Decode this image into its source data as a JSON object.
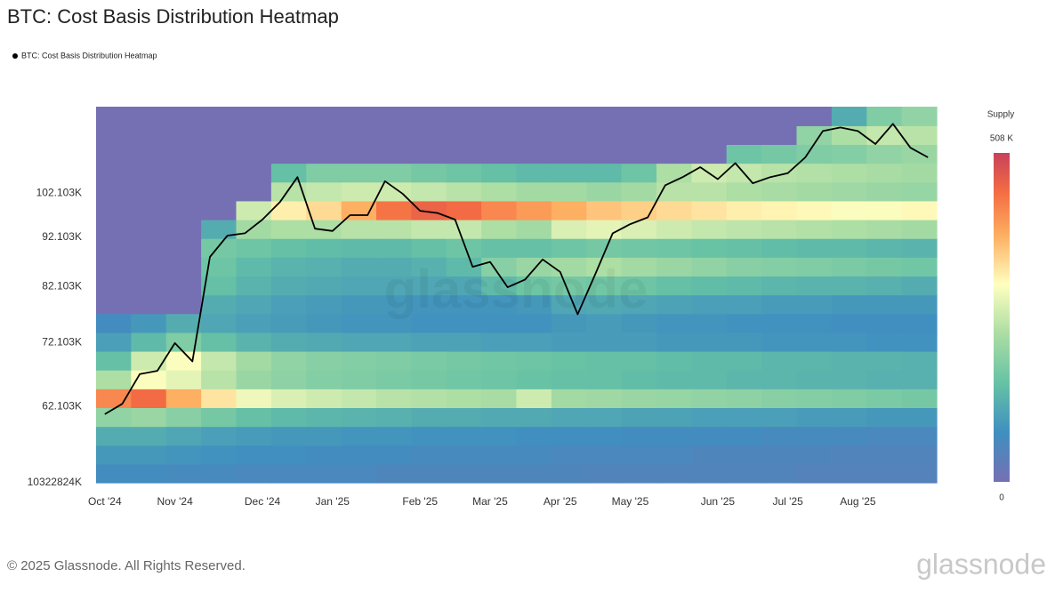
{
  "chart_data": {
    "type": "heatmap",
    "title": "BTC: Cost Basis Distribution Heatmap",
    "categories": [
      "Oct '24",
      null,
      null,
      null,
      "Nov '24",
      null,
      null,
      null,
      null,
      "Dec '24",
      null,
      null,
      null,
      "Jan '25",
      null,
      null,
      null,
      null,
      "Feb '25",
      null,
      null,
      null,
      "Mar '25",
      null,
      null,
      null,
      "Apr '25",
      null,
      null,
      null,
      "May '25",
      null,
      null,
      null,
      null,
      "Jun '25",
      null,
      null,
      null,
      "Jul '25",
      null,
      null,
      null,
      "Aug '25",
      null,
      null,
      null,
      null
    ],
    "series": [
      {
        "name": "BTC: Cost Basis Distribution Heatmap",
        "color": "#000000",
        "values": [
          61000,
          62500,
          67000,
          67500,
          72000,
          69000,
          88000,
          92500,
          93000,
          96000,
          100000,
          106000,
          94000,
          93500,
          97000,
          97000,
          105000,
          102000,
          98000,
          97500,
          96000,
          86000,
          87000,
          82000,
          83500,
          87500,
          85000,
          77000,
          84500,
          93000,
          95000,
          96500,
          104000,
          106000,
          108500,
          105500,
          109500,
          104500,
          106000,
          107000,
          111000,
          118000,
          119000,
          118000,
          114500,
          120000,
          113500,
          111000
        ]
      }
    ],
    "log_y": true,
    "ylim": [
      52000,
      124900
    ],
    "yticks": [
      {
        "value": 102103,
        "label": "102.103K"
      },
      {
        "value": 92103,
        "label": "92.103K"
      },
      {
        "value": 82103,
        "label": "82.103K"
      },
      {
        "value": 72103,
        "label": "72.103K"
      },
      {
        "value": 62103,
        "label": "62.103K"
      }
    ],
    "y_min_label": "10322824K",
    "heatmap": {
      "zlim": [
        0,
        508
      ],
      "y_bins": [
        52000,
        54330,
        56760,
        59300,
        61960,
        64730,
        67630,
        70660,
        73820,
        77130,
        80580,
        84190,
        87960,
        91900,
        96010,
        100310,
        104800,
        109500,
        114400,
        119500,
        124900
      ],
      "z": [
        [
          70,
          70,
          65,
          65,
          60,
          60,
          60,
          60,
          55,
          55,
          55,
          55,
          55,
          55,
          50,
          50,
          50,
          50,
          50,
          50,
          45,
          45,
          45,
          45
        ],
        [
          90,
          90,
          85,
          80,
          75,
          75,
          70,
          70,
          70,
          65,
          65,
          65,
          65,
          60,
          60,
          60,
          60,
          55,
          55,
          55,
          55,
          50,
          50,
          50
        ],
        [
          120,
          120,
          110,
          100,
          95,
          90,
          90,
          85,
          85,
          80,
          80,
          80,
          75,
          75,
          75,
          70,
          70,
          70,
          70,
          65,
          65,
          65,
          60,
          60
        ],
        [
          200,
          210,
          190,
          170,
          150,
          140,
          135,
          130,
          125,
          120,
          120,
          115,
          115,
          110,
          110,
          105,
          105,
          100,
          100,
          100,
          95,
          95,
          90,
          90
        ],
        [
          420,
          450,
          380,
          330,
          290,
          270,
          260,
          250,
          240,
          235,
          230,
          225,
          260,
          220,
          215,
          210,
          205,
          200,
          195,
          190,
          185,
          180,
          175,
          170
        ],
        [
          230,
          300,
          280,
          240,
          210,
          195,
          185,
          180,
          175,
          170,
          165,
          160,
          155,
          150,
          150,
          145,
          140,
          140,
          135,
          135,
          130,
          130,
          125,
          125
        ],
        [
          150,
          260,
          300,
          250,
          220,
          200,
          190,
          185,
          180,
          175,
          170,
          165,
          160,
          155,
          150,
          150,
          145,
          140,
          140,
          135,
          135,
          130,
          130,
          125
        ],
        [
          100,
          140,
          180,
          150,
          130,
          120,
          115,
          110,
          110,
          105,
          105,
          100,
          100,
          95,
          95,
          95,
          90,
          90,
          90,
          85,
          85,
          85,
          80,
          80
        ],
        [
          70,
          90,
          120,
          110,
          100,
          95,
          90,
          85,
          85,
          80,
          80,
          80,
          80,
          90,
          95,
          90,
          85,
          85,
          80,
          80,
          80,
          75,
          75,
          75
        ],
        [
          0,
          0,
          0,
          120,
          110,
          100,
          95,
          90,
          90,
          85,
          85,
          85,
          90,
          110,
          115,
          110,
          105,
          100,
          100,
          95,
          95,
          90,
          90,
          90
        ],
        [
          0,
          0,
          0,
          150,
          130,
          120,
          115,
          110,
          110,
          110,
          110,
          140,
          160,
          170,
          165,
          160,
          150,
          145,
          140,
          135,
          130,
          130,
          125,
          120
        ],
        [
          0,
          0,
          0,
          160,
          140,
          130,
          125,
          120,
          120,
          125,
          140,
          190,
          210,
          220,
          230,
          220,
          210,
          200,
          190,
          185,
          180,
          175,
          170,
          165
        ],
        [
          0,
          0,
          0,
          170,
          160,
          150,
          145,
          140,
          140,
          150,
          160,
          150,
          150,
          160,
          170,
          165,
          160,
          155,
          150,
          145,
          140,
          140,
          135,
          130
        ],
        [
          0,
          0,
          0,
          120,
          220,
          230,
          230,
          240,
          240,
          250,
          250,
          230,
          220,
          270,
          280,
          270,
          260,
          250,
          245,
          240,
          235,
          230,
          225,
          220
        ],
        [
          0,
          0,
          0,
          0,
          260,
          320,
          340,
          380,
          440,
          460,
          450,
          420,
          400,
          380,
          360,
          350,
          340,
          330,
          320,
          315,
          310,
          300,
          300,
          310
        ],
        [
          0,
          0,
          0,
          0,
          0,
          240,
          250,
          260,
          260,
          250,
          240,
          230,
          220,
          220,
          210,
          220,
          240,
          240,
          230,
          225,
          220,
          215,
          210,
          205
        ],
        [
          0,
          0,
          0,
          0,
          0,
          150,
          180,
          180,
          180,
          170,
          160,
          150,
          140,
          140,
          140,
          160,
          230,
          260,
          250,
          240,
          235,
          230,
          225,
          220
        ],
        [
          0,
          0,
          0,
          0,
          0,
          0,
          0,
          0,
          0,
          0,
          0,
          0,
          0,
          0,
          0,
          0,
          0,
          0,
          160,
          170,
          180,
          185,
          200,
          210
        ],
        [
          0,
          0,
          0,
          0,
          0,
          0,
          0,
          0,
          0,
          0,
          0,
          0,
          0,
          0,
          0,
          0,
          0,
          0,
          0,
          0,
          200,
          230,
          250,
          240
        ],
        [
          0,
          0,
          0,
          0,
          0,
          0,
          0,
          0,
          0,
          0,
          0,
          0,
          0,
          0,
          0,
          0,
          0,
          0,
          0,
          0,
          0,
          120,
          180,
          200
        ]
      ]
    },
    "colorbar": {
      "title": "Supply",
      "ticks": [
        0,
        {
          "value": 508,
          "label": "508 K"
        }
      ]
    }
  },
  "watermark": "glassnode",
  "footer": {
    "copyright": "© 2025 Glassnode. All Rights Reserved.",
    "logo": "glassnode"
  }
}
